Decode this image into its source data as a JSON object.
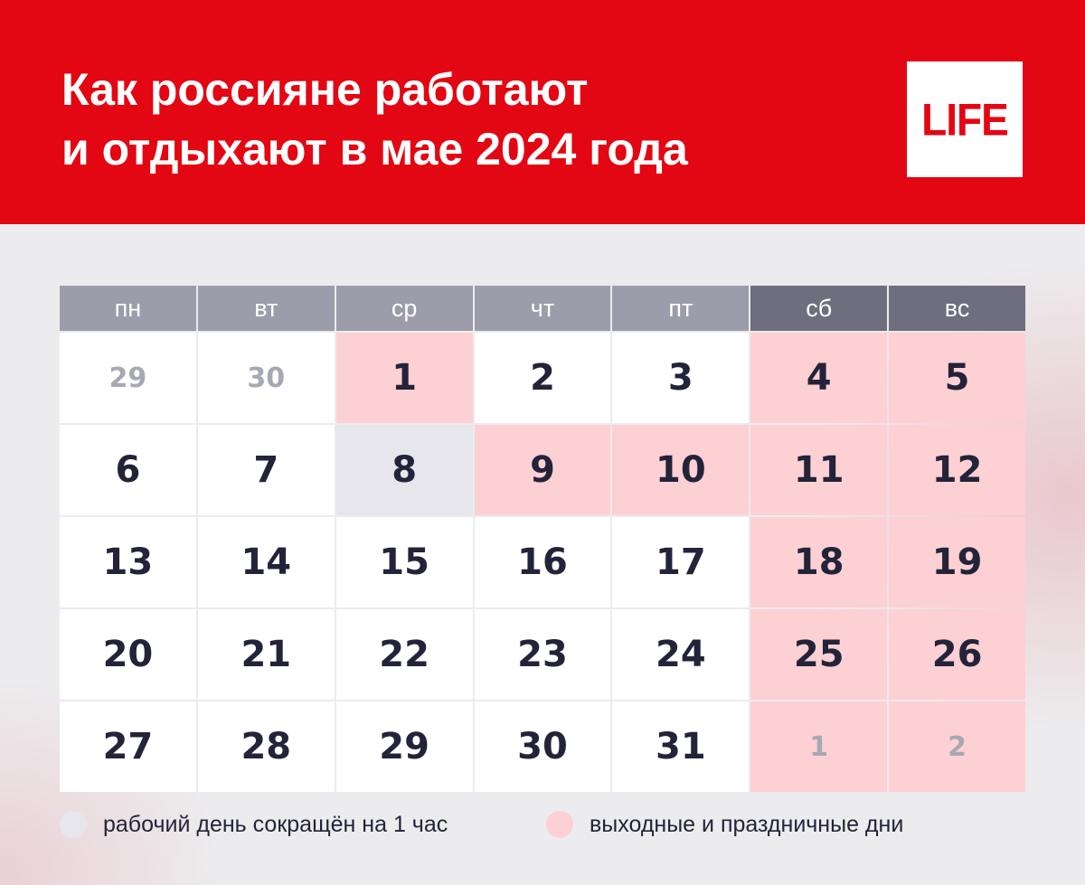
{
  "header": {
    "title_line1": "Как россияне работают",
    "title_line2": "и отдыхают в мае 2024 года",
    "logo": "LIFE",
    "bg_color": "#e30613"
  },
  "calendar": {
    "weekdays": [
      "пн",
      "вт",
      "ср",
      "чт",
      "пт",
      "сб",
      "вс"
    ],
    "weekend_columns": [
      5,
      6
    ],
    "weeks": [
      [
        {
          "day": "29",
          "state": "other"
        },
        {
          "day": "30",
          "state": "other"
        },
        {
          "day": "1",
          "state": "holiday"
        },
        {
          "day": "2",
          "state": "work"
        },
        {
          "day": "3",
          "state": "work"
        },
        {
          "day": "4",
          "state": "holiday"
        },
        {
          "day": "5",
          "state": "holiday"
        }
      ],
      [
        {
          "day": "6",
          "state": "work"
        },
        {
          "day": "7",
          "state": "work"
        },
        {
          "day": "8",
          "state": "short"
        },
        {
          "day": "9",
          "state": "holiday"
        },
        {
          "day": "10",
          "state": "holiday"
        },
        {
          "day": "11",
          "state": "holiday"
        },
        {
          "day": "12",
          "state": "holiday"
        }
      ],
      [
        {
          "day": "13",
          "state": "work"
        },
        {
          "day": "14",
          "state": "work"
        },
        {
          "day": "15",
          "state": "work"
        },
        {
          "day": "16",
          "state": "work"
        },
        {
          "day": "17",
          "state": "work"
        },
        {
          "day": "18",
          "state": "holiday"
        },
        {
          "day": "19",
          "state": "holiday"
        }
      ],
      [
        {
          "day": "20",
          "state": "work"
        },
        {
          "day": "21",
          "state": "work"
        },
        {
          "day": "22",
          "state": "work"
        },
        {
          "day": "23",
          "state": "work"
        },
        {
          "day": "24",
          "state": "work"
        },
        {
          "day": "25",
          "state": "holiday"
        },
        {
          "day": "26",
          "state": "holiday"
        }
      ],
      [
        {
          "day": "27",
          "state": "work"
        },
        {
          "day": "28",
          "state": "work"
        },
        {
          "day": "29",
          "state": "work"
        },
        {
          "day": "30",
          "state": "work"
        },
        {
          "day": "31",
          "state": "work"
        },
        {
          "day": "1",
          "state": "holiday-other"
        },
        {
          "day": "2",
          "state": "holiday-other"
        }
      ]
    ]
  },
  "legend": {
    "short_day": {
      "label": "рабочий день сокращён на 1 час",
      "color": "#e6e6ec"
    },
    "holiday": {
      "label": "выходные и праздничные дни",
      "color": "#fdd0d3"
    }
  }
}
